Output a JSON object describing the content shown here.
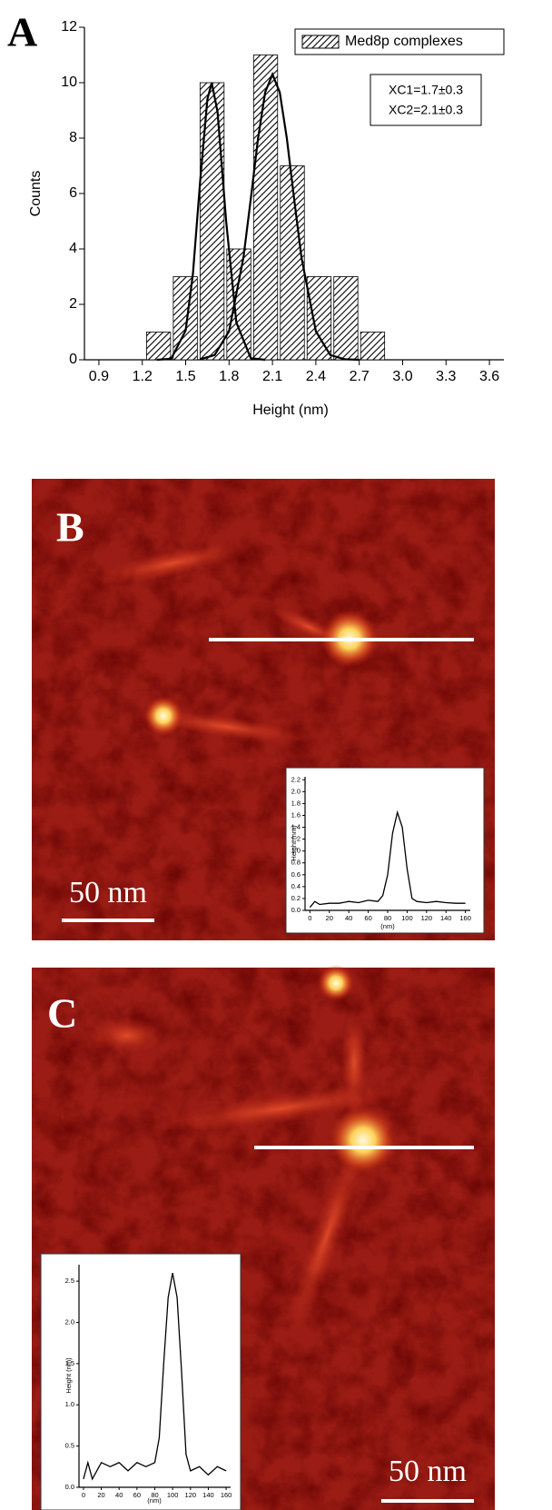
{
  "chart_data": [
    {
      "type": "histogram",
      "panel_label": "A",
      "x_label": "Height (nm)",
      "y_label": "Counts",
      "xlim": [
        0.8,
        3.7
      ],
      "ylim": [
        0,
        12
      ],
      "xticks": [
        0.9,
        1.2,
        1.5,
        1.8,
        2.1,
        2.4,
        2.7,
        {
          "value": 3,
          "label": "3.0"
        },
        3.3,
        3.6
      ],
      "yticks": [
        0,
        2,
        4,
        6,
        8,
        10,
        12
      ],
      "bins": [
        1.22,
        1.405,
        1.59,
        1.775,
        1.96,
        2.145,
        2.33,
        2.515,
        2.7,
        2.885
      ],
      "series": [
        {
          "name": "Med8p complexes",
          "color": "#000000",
          "values": [
            1,
            3,
            10,
            4,
            11,
            7,
            3,
            3,
            1
          ]
        }
      ],
      "fits": [
        {
          "color": "#000000",
          "x": [
            1.3,
            1.4,
            1.5,
            1.55,
            1.6,
            1.65,
            1.68,
            1.72,
            1.78,
            1.85,
            1.95,
            2.05
          ],
          "values": [
            0,
            0.04,
            1.06,
            3.1,
            6.42,
            9.4,
            10,
            8.95,
            5.0,
            1.35,
            0.06,
            0
          ]
        },
        {
          "color": "#000000",
          "x": [
            1.6,
            1.7,
            1.8,
            1.9,
            1.95,
            2.0,
            2.05,
            2.1,
            2.15,
            2.2,
            2.25,
            2.3,
            2.4,
            2.5,
            2.6,
            2.7
          ],
          "values": [
            0.02,
            0.17,
            1.03,
            3.7,
            5.8,
            7.98,
            9.66,
            10.3,
            9.66,
            7.98,
            5.8,
            3.7,
            1.03,
            0.17,
            0.02,
            0
          ]
        }
      ],
      "annotations": [
        "XC1=1.7±0.3",
        "XC2=2.1±0.3"
      ],
      "legend": "upper right"
    },
    {
      "type": "line",
      "panel_label": "B",
      "scale_bar": "50 nm",
      "x_label": "(nm)",
      "y_label": "Height (nm)",
      "xlim": [
        -5,
        165
      ],
      "ylim": [
        0,
        2.25
      ],
      "xticks": [
        0,
        20,
        40,
        60,
        80,
        100,
        120,
        140,
        160
      ],
      "yticks": [
        {
          "value": 0,
          "label": "0.0"
        },
        0.2,
        0.4,
        0.6,
        0.8,
        {
          "value": 1,
          "label": "1.0"
        },
        1.2,
        1.4,
        1.6,
        1.8,
        {
          "value": 2,
          "label": "2.0"
        },
        2.2
      ],
      "x": [
        0,
        5,
        10,
        20,
        30,
        40,
        50,
        60,
        70,
        75,
        80,
        85,
        90,
        95,
        100,
        105,
        110,
        120,
        130,
        140,
        150,
        160
      ],
      "series": [
        {
          "color": "#000000",
          "values": [
            0.05,
            0.15,
            0.1,
            0.12,
            0.12,
            0.15,
            0.13,
            0.17,
            0.15,
            0.25,
            0.6,
            1.3,
            1.65,
            1.4,
            0.7,
            0.2,
            0.15,
            0.13,
            0.15,
            0.13,
            0.12,
            0.12
          ]
        }
      ]
    },
    {
      "type": "line",
      "panel_label": "C",
      "scale_bar": "50 nm",
      "x_label": "(nm)",
      "y_label": "Height (nm)",
      "xlim": [
        -5,
        165
      ],
      "ylim": [
        0,
        2.7
      ],
      "xticks": [
        0,
        20,
        40,
        60,
        80,
        100,
        120,
        140,
        160
      ],
      "yticks": [
        {
          "value": 0,
          "label": "0.0"
        },
        0.5,
        {
          "value": 1,
          "label": "1.0"
        },
        1.5,
        {
          "value": 2,
          "label": "2.0"
        },
        2.5
      ],
      "x": [
        0,
        5,
        10,
        20,
        30,
        40,
        50,
        60,
        70,
        80,
        85,
        90,
        95,
        100,
        105,
        110,
        115,
        120,
        130,
        140,
        150,
        160
      ],
      "series": [
        {
          "color": "#000000",
          "values": [
            0.1,
            0.3,
            0.1,
            0.3,
            0.25,
            0.3,
            0.2,
            0.3,
            0.25,
            0.3,
            0.6,
            1.5,
            2.3,
            2.6,
            2.3,
            1.4,
            0.4,
            0.2,
            0.25,
            0.15,
            0.25,
            0.2
          ]
        }
      ]
    }
  ]
}
